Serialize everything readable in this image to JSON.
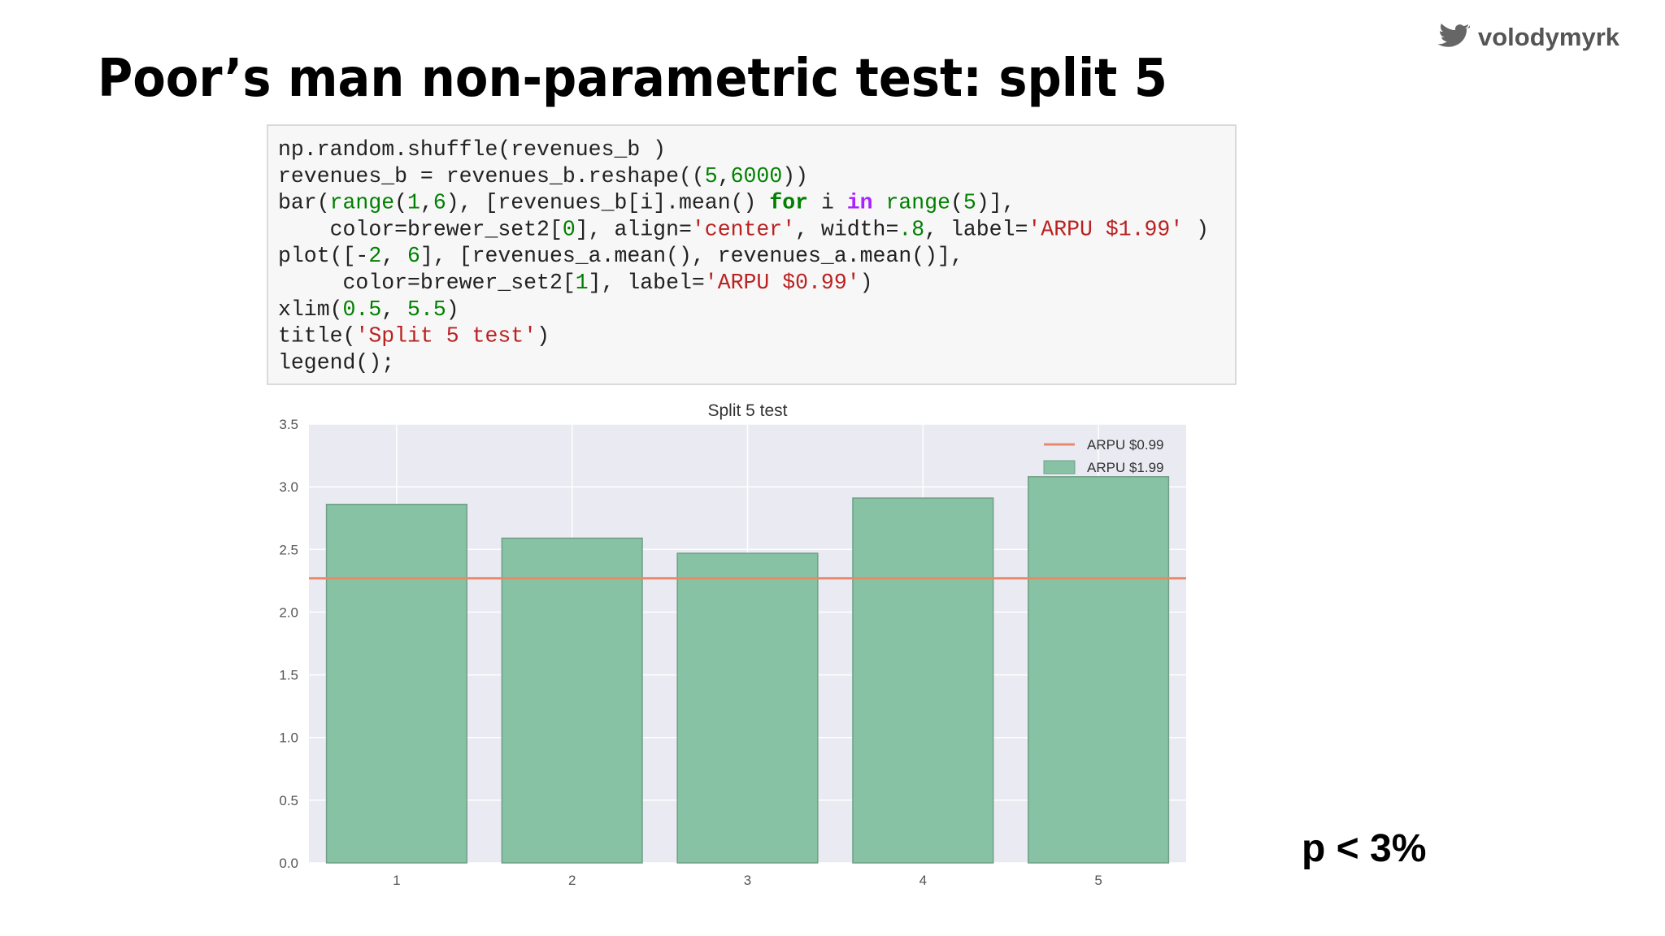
{
  "slide_title": "Poor’s man non-parametric test: split 5",
  "handle": "volodymyrk",
  "code": [
    "np.random.shuffle(revenues_b )",
    "revenues_b = revenues_b.reshape((5,6000))",
    "bar(range(1,6), [revenues_b[i].mean() for i in range(5)],",
    "    color=brewer_set2[0], align='center', width=.8, label='ARPU $1.99' )",
    "plot([-2, 6], [revenues_a.mean(), revenues_a.mean()],",
    "     color=brewer_set2[1], label='ARPU $0.99')",
    "xlim(0.5, 5.5)",
    "title('Split 5 test')",
    "legend();"
  ],
  "note": "p < 3%",
  "chart_data": {
    "type": "bar",
    "title": "Split 5 test",
    "series": [
      {
        "name": "ARPU $1.99",
        "type": "bar",
        "color": "#88c2a4",
        "x": [
          1,
          2,
          3,
          4,
          5
        ],
        "values": [
          2.86,
          2.59,
          2.47,
          2.91,
          3.08
        ]
      },
      {
        "name": "ARPU $0.99",
        "type": "line",
        "color": "#e8896a",
        "x": [
          -2,
          6
        ],
        "values": [
          2.27,
          2.27
        ]
      }
    ],
    "xlim": [
      0.5,
      5.5
    ],
    "xticks": [
      1,
      2,
      3,
      4,
      5
    ],
    "ylim": [
      0,
      3.5
    ],
    "yticks": [
      {
        "value": 0,
        "label": "0.0"
      },
      0.5,
      {
        "value": 1,
        "label": "1.0"
      },
      1.5,
      {
        "value": 2,
        "label": "2.0"
      },
      2.5,
      {
        "value": 3,
        "label": "3.0"
      },
      3.5
    ],
    "bar_width": 0.8,
    "grid": true,
    "legend": "upper right"
  }
}
